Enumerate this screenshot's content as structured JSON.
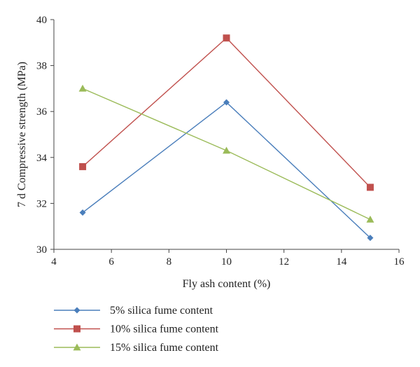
{
  "chart_data": {
    "type": "line",
    "xlabel": "Fly ash content (%)",
    "ylabel": "7 d Compressive strength (MPa)",
    "xlim": [
      4,
      16
    ],
    "ylim": [
      30,
      40
    ],
    "xticks": [
      4,
      6,
      8,
      10,
      12,
      14,
      16
    ],
    "yticks": [
      30,
      32,
      34,
      36,
      38,
      40
    ],
    "x": [
      5,
      10,
      15
    ],
    "legend_position": "bottom",
    "grid": false,
    "series": [
      {
        "name": "5% silica fume content",
        "values": [
          31.6,
          36.4,
          30.5
        ],
        "color": "#4a7ebb",
        "marker": "diamond"
      },
      {
        "name": "10% silica fume content",
        "values": [
          33.6,
          39.2,
          32.7
        ],
        "color": "#c0504d",
        "marker": "square"
      },
      {
        "name": "15% silica fume content",
        "values": [
          37.0,
          34.3,
          31.3
        ],
        "color": "#9bbb59",
        "marker": "triangle"
      }
    ]
  }
}
